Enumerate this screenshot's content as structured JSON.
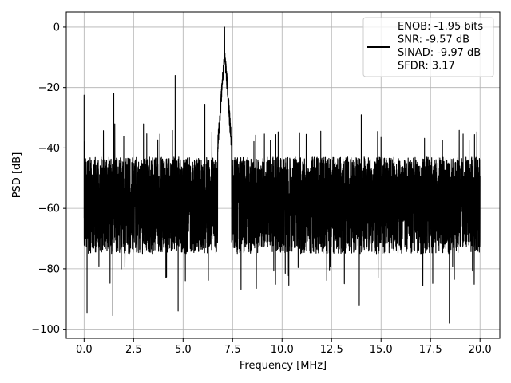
{
  "chart_data": {
    "type": "line",
    "title": "",
    "xlabel": "Frequency [MHz]",
    "ylabel": "PSD [dB]",
    "xlim": [
      -0.9,
      21.0
    ],
    "ylim": [
      -103,
      5
    ],
    "xticks": [
      0.0,
      2.5,
      5.0,
      7.5,
      10.0,
      12.5,
      15.0,
      17.5,
      20.0
    ],
    "xtick_labels": [
      "0.0",
      "2.5",
      "5.0",
      "7.5",
      "10.0",
      "12.5",
      "15.0",
      "17.5",
      "20.0"
    ],
    "yticks": [
      0,
      -20,
      -40,
      -60,
      -80,
      -100
    ],
    "ytick_labels": [
      "0",
      "−20",
      "−40",
      "−60",
      "−80",
      "−100"
    ],
    "grid": true,
    "legend_position": "top-right",
    "legend_entries": [
      "ENOB: -1.95 bits",
      "SNR: -9.57 dB",
      "SINAD: -9.97 dB",
      "SFDR: 3.17"
    ],
    "series_color": "#000000",
    "series": [
      {
        "x_range": [
          0.0,
          20.0
        ],
        "noise_floor_db": -57,
        "noise_upper_db": -43,
        "noise_lower_db": -75,
        "peaks": [
          {
            "x": 0.0,
            "y": -22.5
          },
          {
            "x": 0.03,
            "y": -38.0
          },
          {
            "x": 1.5,
            "y": -22.0
          },
          {
            "x": 1.55,
            "y": -32.0
          },
          {
            "x": 3.0,
            "y": -32.0
          },
          {
            "x": 4.6,
            "y": -16.0
          },
          {
            "x": 6.1,
            "y": -25.5
          },
          {
            "x": 7.1,
            "y": 0.0
          },
          {
            "x": 14.0,
            "y": -29.0
          },
          {
            "x": 15.0,
            "y": -36.5
          }
        ],
        "dips": [
          {
            "x": 0.15,
            "y": -94.5
          },
          {
            "x": 1.45,
            "y": -95.5
          },
          {
            "x": 4.75,
            "y": -94.0
          },
          {
            "x": 8.7,
            "y": -86.5
          },
          {
            "x": 13.9,
            "y": -92.0
          },
          {
            "x": 18.45,
            "y": -98.0
          }
        ]
      }
    ]
  }
}
